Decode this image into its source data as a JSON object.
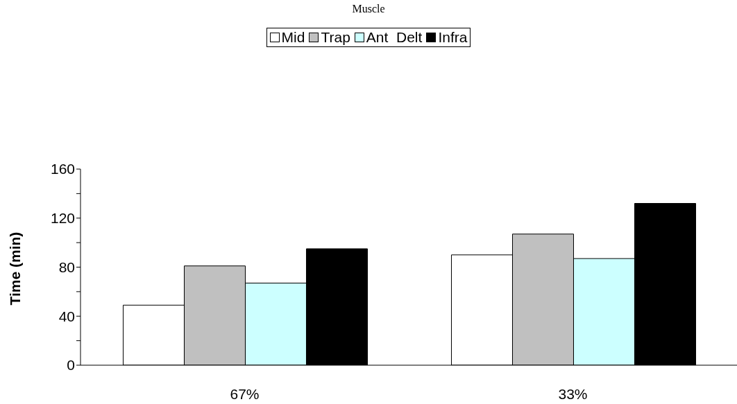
{
  "chart_data": {
    "type": "bar",
    "title": "Muscle",
    "ylabel": "Time (min)",
    "categories": [
      "67%",
      "33%"
    ],
    "series": [
      {
        "name": "Mid",
        "color": "#ffffff",
        "values": [
          49,
          90
        ]
      },
      {
        "name": "Trap",
        "color": "#c0c0c0",
        "values": [
          81,
          107
        ]
      },
      {
        "name": "Ant  Delt",
        "color": "#ccffff",
        "values": [
          67,
          87
        ]
      },
      {
        "name": "Infra",
        "color": "#000000",
        "values": [
          95,
          132
        ]
      }
    ],
    "ylim": [
      0,
      160
    ],
    "yticks": [
      0,
      {
        "value": 20,
        "label": null
      },
      40,
      {
        "value": 60,
        "label": null
      },
      80,
      {
        "value": 100,
        "label": null
      },
      120,
      {
        "value": 140,
        "label": null
      },
      160
    ],
    "grid": false,
    "legend": "top"
  }
}
